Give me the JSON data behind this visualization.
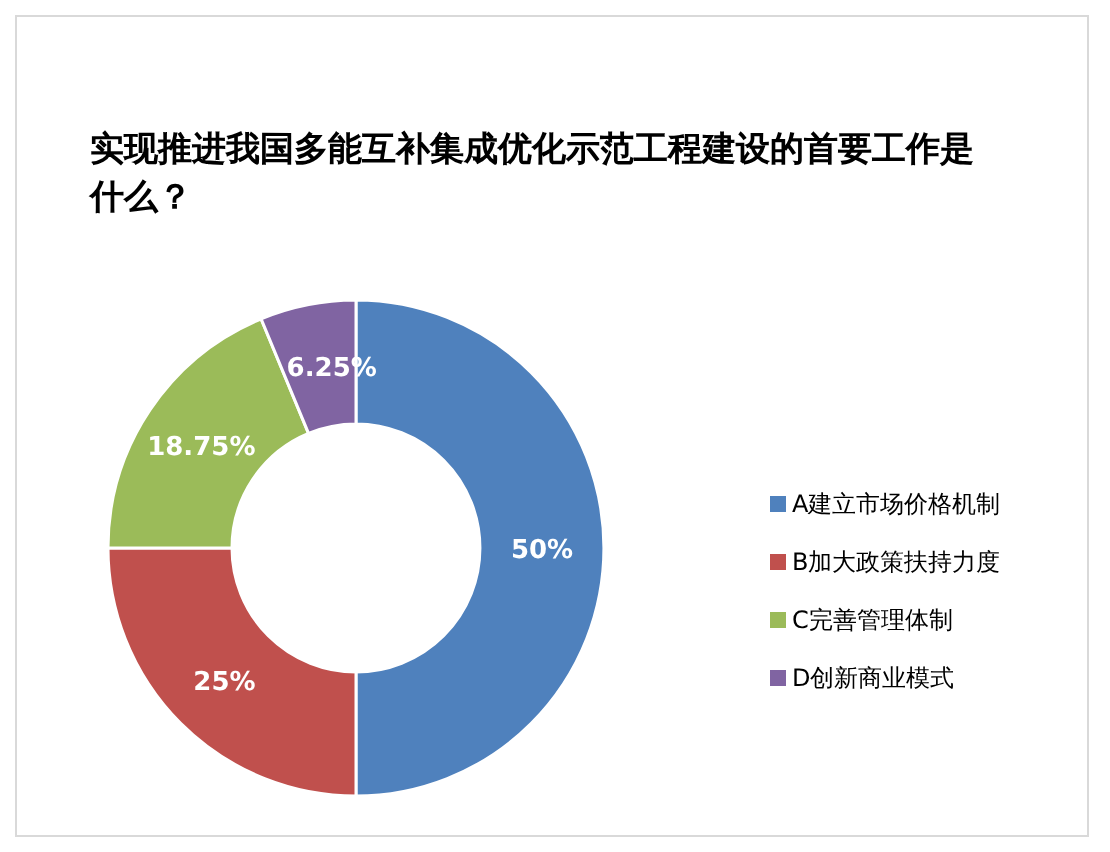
{
  "chart_data": {
    "type": "donut",
    "title": "实现推进我国多能互补集成优化示范工程建设的首要工作是什么？",
    "categories": [
      "A建立市场价格机制",
      "B加大政策扶持力度",
      "C完善管理体制",
      "D创新商业模式"
    ],
    "values": [
      50,
      25,
      18.75,
      6.25
    ],
    "colors": [
      "#4f81bd",
      "#c0504d",
      "#9bbb59",
      "#8064a2"
    ],
    "value_labels": [
      "50%",
      "25%",
      "18.75%",
      "6.25%"
    ],
    "legend": "right"
  }
}
